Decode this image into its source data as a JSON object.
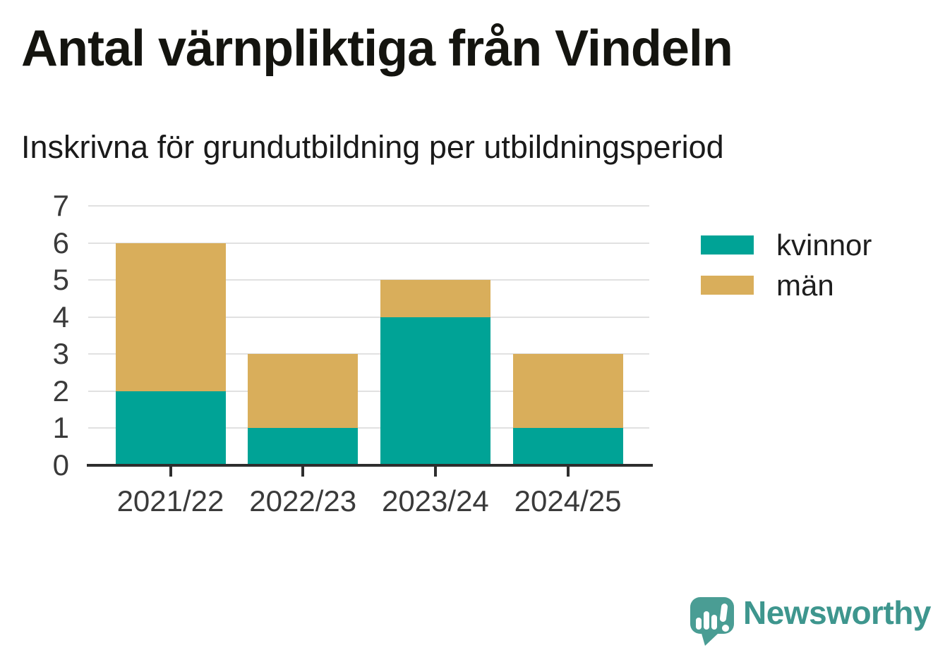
{
  "header": {
    "title": "Antal värnpliktiga från Vindeln",
    "subtitle": "Inskrivna för grundutbildning per utbildningsperiod"
  },
  "chart_data": {
    "type": "bar",
    "stacked": true,
    "title": "Antal värnpliktiga från Vindeln",
    "subtitle": "Inskrivna för grundutbildning per utbildningsperiod",
    "categories": [
      "2021/22",
      "2022/23",
      "2023/24",
      "2024/25"
    ],
    "series": [
      {
        "name": "kvinnor",
        "color": "#00a396",
        "values": [
          2,
          1,
          4,
          1
        ]
      },
      {
        "name": "män",
        "color": "#d9ae5b",
        "values": [
          4,
          2,
          1,
          2
        ]
      }
    ],
    "totals": [
      6,
      3,
      5,
      3
    ],
    "xlabel": "",
    "ylabel": "",
    "ylim": [
      0,
      7
    ],
    "yticks": [
      0,
      1,
      2,
      3,
      4,
      5,
      6,
      7
    ],
    "grid": true,
    "legend_position": "right"
  },
  "branding": {
    "name": "Newsworthy",
    "icon": "newsworthy-logo-icon",
    "text_color": "#3e968e",
    "icon_color": "#4a9d94"
  },
  "colors": {
    "background": "#ffffff",
    "axis": "#2e2e2e",
    "grid": "#e1e1e1",
    "tick_text": "#3a3a3a",
    "title_text": "#14140f"
  }
}
